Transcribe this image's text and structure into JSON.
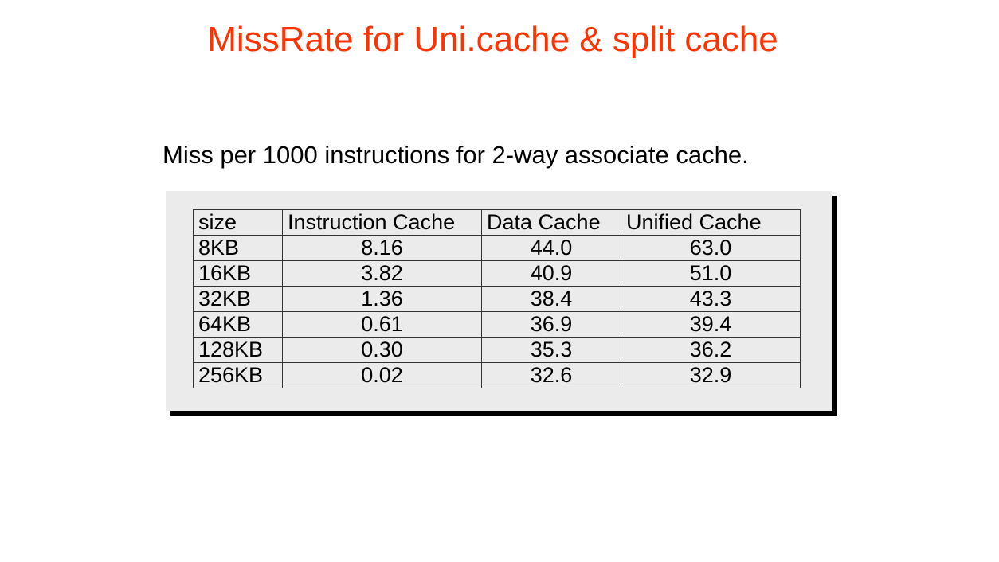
{
  "slide": {
    "title": "MissRate for Uni.cache & split cache",
    "subtitle": "Miss per 1000 instructions for 2-way associate cache."
  },
  "table": {
    "headers": [
      "size",
      "Instruction Cache",
      "Data Cache",
      "Unified Cache"
    ],
    "rows": [
      [
        "8KB",
        "8.16",
        "44.0",
        "63.0"
      ],
      [
        "16KB",
        "3.82",
        "40.9",
        "51.0"
      ],
      [
        "32KB",
        "1.36",
        "38.4",
        "43.3"
      ],
      [
        "64KB",
        "0.61",
        "36.9",
        "39.4"
      ],
      [
        "128KB",
        "0.30",
        "35.3",
        "36.2"
      ],
      [
        "256KB",
        "0.02",
        "32.6",
        "32.9"
      ]
    ]
  },
  "colors": {
    "title": "#ff3300",
    "panel_background": "#ebebeb",
    "panel_shadow": "#000000"
  }
}
